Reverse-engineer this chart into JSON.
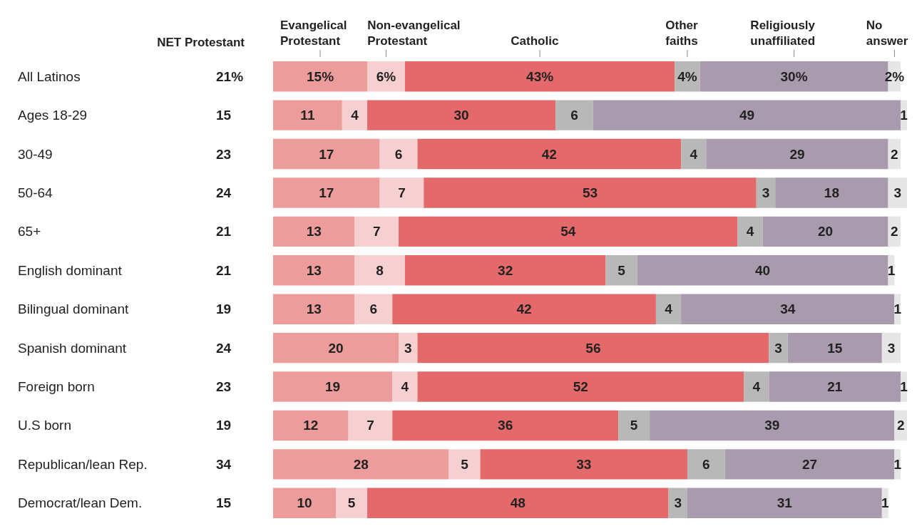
{
  "chart_data": {
    "type": "bar",
    "orientation": "horizontal",
    "stacked": true,
    "data_labels": true,
    "grid": false,
    "legend": false,
    "tick_labels": "y",
    "xlim": [
      0,
      101
    ],
    "categories": [
      "All Latinos",
      "Ages 18-29",
      "30-49",
      "50-64",
      "65+",
      "English dominant",
      "Bilingual dominant",
      "Spanish dominant",
      "Foreign born",
      "U.S born",
      "Republican/lean Rep.",
      "Democrat/lean Dem."
    ],
    "series": [
      {
        "name": "Evangelical Protestant",
        "color": "#ec9c9b",
        "values": [
          15,
          11,
          17,
          17,
          13,
          13,
          13,
          20,
          19,
          12,
          28,
          10
        ],
        "value_labels": [
          "15%",
          "11",
          "17",
          "17",
          "13",
          "13",
          "13",
          "20",
          "19",
          "12",
          "28",
          "10"
        ]
      },
      {
        "name": "Non-evangelical Protestant",
        "color": "#f6cfd0",
        "values": [
          6,
          4,
          6,
          7,
          7,
          8,
          6,
          3,
          4,
          7,
          5,
          5
        ],
        "value_labels": [
          "6%",
          "4",
          "6",
          "7",
          "7",
          "8",
          "6",
          "3",
          "4",
          "7",
          "5",
          "5"
        ]
      },
      {
        "name": "Catholic",
        "color": "#e4696a",
        "values": [
          43,
          30,
          42,
          53,
          54,
          32,
          42,
          56,
          52,
          36,
          33,
          48
        ],
        "value_labels": [
          "43%",
          "30",
          "42",
          "53",
          "54",
          "32",
          "42",
          "56",
          "52",
          "36",
          "33",
          "48"
        ]
      },
      {
        "name": "Other faiths",
        "color": "#b8b8b8",
        "values": [
          4,
          6,
          4,
          3,
          4,
          5,
          4,
          3,
          4,
          5,
          6,
          3
        ],
        "value_labels": [
          "4%",
          "6",
          "4",
          "3",
          "4",
          "5",
          "4",
          "3",
          "4",
          "5",
          "6",
          "3"
        ]
      },
      {
        "name": "Religiously unaffiliated",
        "color": "#a99bae",
        "values": [
          30,
          49,
          29,
          18,
          20,
          40,
          34,
          15,
          21,
          39,
          27,
          31
        ],
        "value_labels": [
          "30%",
          "49",
          "29",
          "18",
          "20",
          "40",
          "34",
          "15",
          "21",
          "39",
          "27",
          "31"
        ]
      },
      {
        "name": "No answer",
        "color": "#e6e6e6",
        "values": [
          2,
          1,
          2,
          3,
          2,
          1,
          1,
          3,
          1,
          2,
          1,
          1
        ],
        "value_labels": [
          "2%",
          "1",
          "2",
          "3",
          "2",
          "1",
          "1",
          "3",
          "1",
          "2",
          "1",
          "1"
        ]
      }
    ],
    "annotations": [
      "NET Protestant",
      "21%",
      "15",
      "23",
      "24",
      "21",
      "21",
      "19",
      "24",
      "23",
      "19",
      "34",
      "15"
    ]
  }
}
